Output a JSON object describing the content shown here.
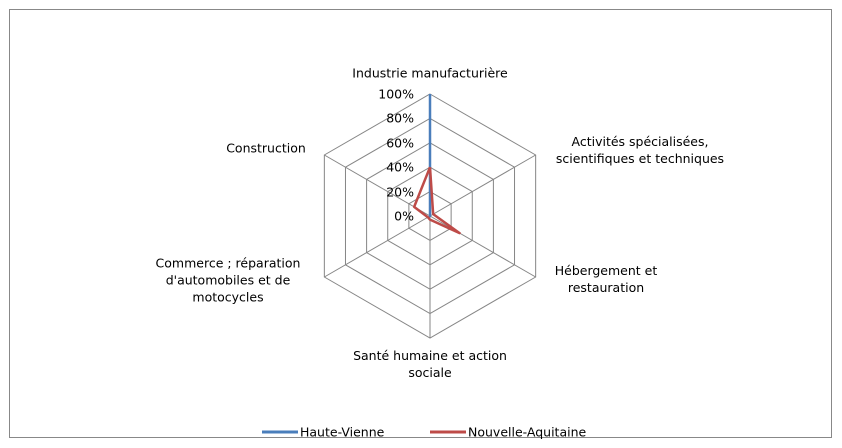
{
  "chart_data": {
    "type": "radar",
    "categories": [
      "Industrie manufacturière",
      "Activités spécialisées,\nscientifiques et techniques",
      "Hébergement et\nrestauration",
      "Santé humaine et action\nsociale",
      "Commerce ; réparation\nd'automobiles et de\nmotocycles",
      "Construction"
    ],
    "series": [
      {
        "name": "Haute-Vienne",
        "color": "#4a7ebb",
        "values": [
          100,
          0,
          0,
          0,
          0,
          0
        ]
      },
      {
        "name": "Nouvelle-Aquitaine",
        "color": "#be4b48",
        "values": [
          40,
          3,
          28,
          3,
          2,
          15
        ]
      }
    ],
    "ylim": [
      0,
      100
    ],
    "yticks": [
      {
        "value": 0,
        "label": "0%"
      },
      {
        "value": 20,
        "label": "20%"
      },
      {
        "value": 40,
        "label": "40%"
      },
      {
        "value": 60,
        "label": "60%"
      },
      {
        "value": 80,
        "label": "80%"
      },
      {
        "value": 100,
        "label": "100%"
      }
    ],
    "grid": true,
    "legend": "bottom"
  }
}
